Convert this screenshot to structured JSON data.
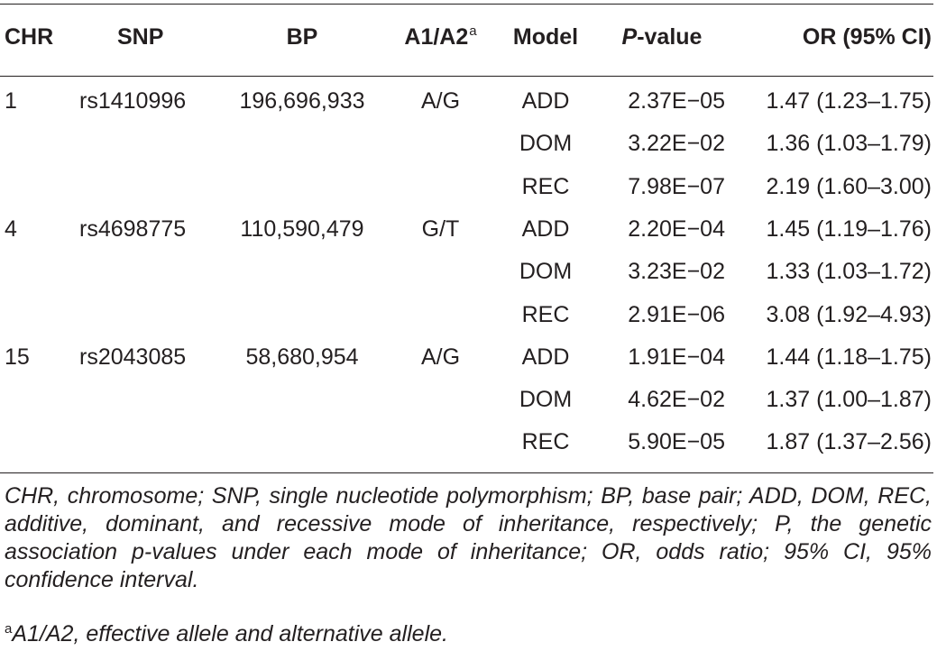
{
  "headers": {
    "chr": "CHR",
    "snp": "SNP",
    "bp": "BP",
    "alleles": "A1/A2",
    "alleles_sup": "a",
    "model": "Model",
    "pvalue_italic": "P",
    "pvalue_rest": "-value",
    "or": "OR (95% CI)"
  },
  "rows": [
    {
      "chr": "1",
      "snp": "rs1410996",
      "bp": "196,696,933",
      "alleles": "A/G",
      "model": "ADD",
      "p": "2.37E−05",
      "or": "1.47 (1.23–1.75)"
    },
    {
      "chr": "",
      "snp": "",
      "bp": "",
      "alleles": "",
      "model": "DOM",
      "p": "3.22E−02",
      "or": "1.36 (1.03–1.79)"
    },
    {
      "chr": "",
      "snp": "",
      "bp": "",
      "alleles": "",
      "model": "REC",
      "p": "7.98E−07",
      "or": "2.19 (1.60–3.00)"
    },
    {
      "chr": "4",
      "snp": "rs4698775",
      "bp": "110,590,479",
      "alleles": "G/T",
      "model": "ADD",
      "p": "2.20E−04",
      "or": "1.45 (1.19–1.76)"
    },
    {
      "chr": "",
      "snp": "",
      "bp": "",
      "alleles": "",
      "model": "DOM",
      "p": "3.23E−02",
      "or": "1.33 (1.03–1.72)"
    },
    {
      "chr": "",
      "snp": "",
      "bp": "",
      "alleles": "",
      "model": "REC",
      "p": "2.91E−06",
      "or": "3.08 (1.92–4.93)"
    },
    {
      "chr": "15",
      "snp": "rs2043085",
      "bp": "58,680,954",
      "alleles": "A/G",
      "model": "ADD",
      "p": "1.91E−04",
      "or": "1.44 (1.18–1.75)"
    },
    {
      "chr": "",
      "snp": "",
      "bp": "",
      "alleles": "",
      "model": "DOM",
      "p": "4.62E−02",
      "or": "1.37 (1.00–1.87)"
    },
    {
      "chr": "",
      "snp": "",
      "bp": "",
      "alleles": "",
      "model": "REC",
      "p": "5.90E−05",
      "or": "1.87 (1.37–2.56)"
    }
  ],
  "footnote": "CHR, chromosome; SNP, single nucleotide polymorphism; BP, base pair; ADD, DOM, REC, additive, dominant, and recessive mode of inheritance, respectively; P, the genetic association p-values under each mode of inheritance; OR, odds ratio; 95% CI, 95% confidence interval.",
  "note_marker": "a",
  "note_text": "A1/A2, effective allele and alternative allele."
}
